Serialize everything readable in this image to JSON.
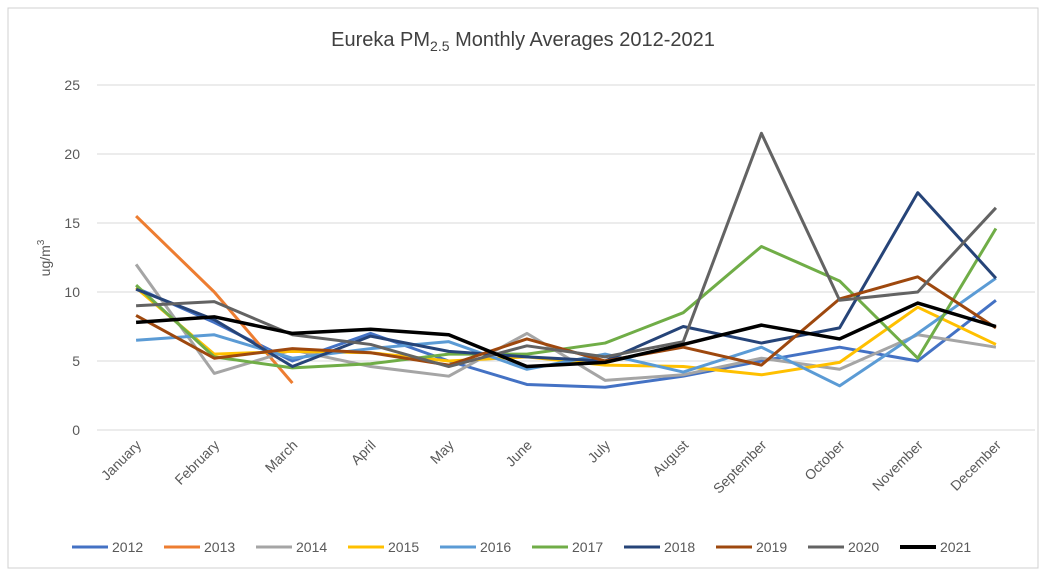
{
  "chart_data": {
    "type": "line",
    "title": [
      "Eureka PM",
      "2.5",
      " Monthly Averages 2012-2021"
    ],
    "y_label": [
      "ug/m",
      "3"
    ],
    "categories": [
      "January",
      "February",
      "March",
      "April",
      "May",
      "June",
      "July",
      "August",
      "September",
      "October",
      "November",
      "December"
    ],
    "ylim": [
      0,
      25
    ],
    "yticks": [
      0,
      5,
      10,
      15,
      20,
      25
    ],
    "grid": true,
    "legend": "bottom",
    "series": [
      {
        "name": "2012",
        "color": "#4472c4",
        "values": [
          10.3,
          7.8,
          5.0,
          7.0,
          5.0,
          3.3,
          3.1,
          3.9,
          5.0,
          6.0,
          5.0,
          9.4
        ]
      },
      {
        "name": "2013",
        "color": "#ed7d31",
        "values": [
          15.5,
          10.0,
          3.4,
          null,
          null,
          null,
          null,
          null,
          null,
          null,
          null,
          null
        ]
      },
      {
        "name": "2014",
        "color": "#a5a5a5",
        "values": [
          12.0,
          4.1,
          5.8,
          4.6,
          3.9,
          7.0,
          3.6,
          4.0,
          5.2,
          4.4,
          6.9,
          6.0
        ]
      },
      {
        "name": "2015",
        "color": "#ffc000",
        "values": [
          10.3,
          5.5,
          5.7,
          5.6,
          5.0,
          5.3,
          4.7,
          4.6,
          4.0,
          4.9,
          8.9,
          6.2
        ]
      },
      {
        "name": "2016",
        "color": "#5b9bd5",
        "values": [
          6.5,
          6.9,
          5.2,
          5.9,
          6.4,
          4.4,
          5.5,
          4.2,
          6.0,
          3.2,
          7.0,
          11.0
        ]
      },
      {
        "name": "2017",
        "color": "#70ad47",
        "values": [
          10.5,
          5.3,
          4.5,
          4.8,
          5.5,
          5.5,
          6.3,
          8.5,
          13.3,
          10.8,
          5.2,
          14.6
        ]
      },
      {
        "name": "2018",
        "color": "#264478",
        "values": [
          10.2,
          8.0,
          4.6,
          6.8,
          5.7,
          5.3,
          5.0,
          7.5,
          6.3,
          7.4,
          17.2,
          11.0
        ]
      },
      {
        "name": "2019",
        "color": "#9e480e",
        "values": [
          8.3,
          5.2,
          5.9,
          5.6,
          4.7,
          6.6,
          5.0,
          6.0,
          4.7,
          9.5,
          11.1,
          7.4
        ]
      },
      {
        "name": "2020",
        "color": "#636363",
        "values": [
          9.0,
          9.3,
          6.9,
          6.2,
          4.6,
          6.1,
          5.3,
          6.4,
          21.5,
          9.4,
          10.0,
          16.1
        ]
      },
      {
        "name": "2021",
        "color": "#000000",
        "values": [
          7.8,
          8.2,
          7.0,
          7.3,
          6.9,
          4.6,
          4.9,
          6.2,
          7.6,
          6.6,
          9.2,
          7.5
        ]
      }
    ]
  }
}
